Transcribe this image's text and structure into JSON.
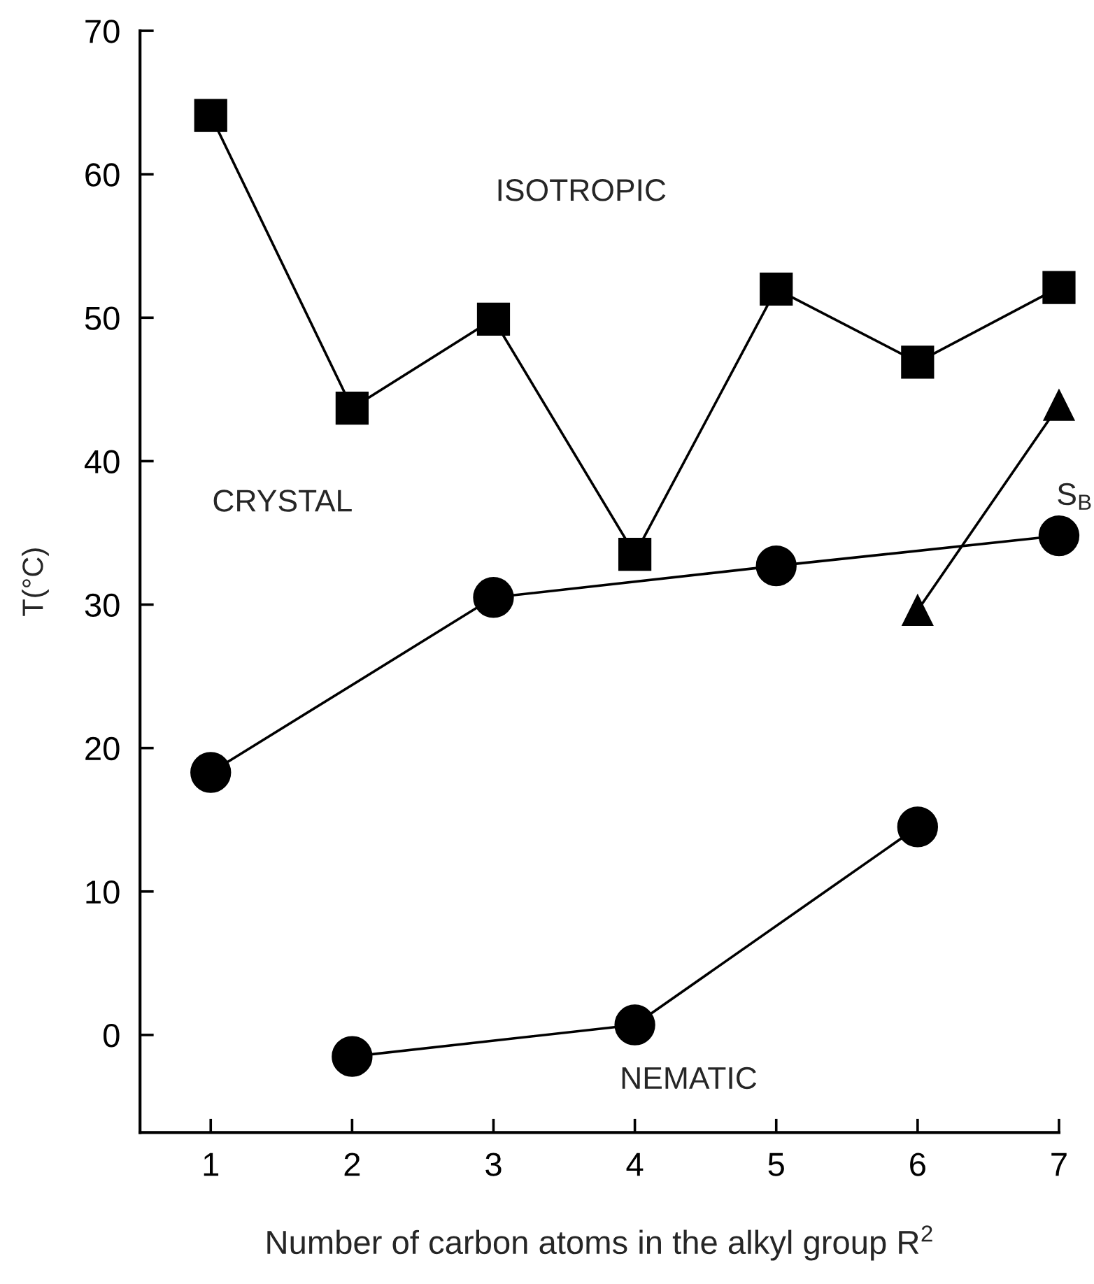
{
  "chart_data": {
    "type": "line",
    "xlabel": "Number of carbon atoms in the alkyl group R$^{2}$",
    "ylabel": "T(°C)",
    "xlim": [
      0.5,
      7
    ],
    "ylim": [
      -6.8,
      70
    ],
    "xticks": [
      1,
      2,
      3,
      4,
      5,
      6,
      7
    ],
    "yticks": [
      0,
      10,
      20,
      30,
      40,
      50,
      60,
      70
    ],
    "grid": false,
    "legend": false,
    "series": [
      {
        "color": "#000000",
        "marker": "square",
        "x": [
          1,
          2,
          3,
          4,
          5,
          6,
          7
        ],
        "values": [
          64.1,
          43.7,
          49.9,
          33.5,
          52.0,
          46.9,
          52.1
        ]
      },
      {
        "color": "#000000",
        "marker": "circle",
        "x": [
          1,
          3,
          5,
          7
        ],
        "values": [
          18.3,
          30.5,
          32.7,
          34.8
        ]
      },
      {
        "color": "#000000",
        "marker": "circle",
        "x": [
          2,
          4,
          6
        ],
        "values": [
          -1.5,
          0.7,
          14.5
        ]
      },
      {
        "color": "#000000",
        "marker": "triangle",
        "x": [
          6,
          7
        ],
        "values": [
          29.6,
          43.9
        ]
      }
    ],
    "annotations": [
      "ISOTROPIC",
      "CRYSTAL",
      "NEMATIC",
      "S$_{B}$"
    ]
  }
}
